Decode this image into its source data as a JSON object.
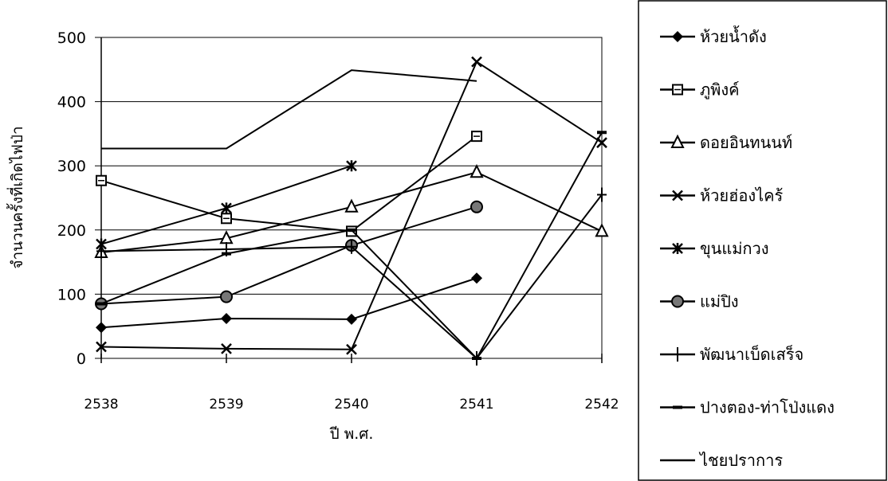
{
  "chart_data": {
    "type": "line",
    "title": "",
    "xlabel": "ปี พ.ศ.",
    "ylabel": "จำนวนครั้งที่เกิดไฟป่า",
    "categories": [
      "2538",
      "2539",
      "2540",
      "2541",
      "2542"
    ],
    "ylim": [
      0,
      500
    ],
    "yticks": [
      "0",
      "100",
      "200",
      "300",
      "400",
      "500"
    ],
    "grid": "horizontal",
    "legend_position": "right",
    "series": [
      {
        "name": "ห้วยน้ำดัง",
        "marker": "diamond",
        "values": [
          48,
          62,
          61,
          125,
          null
        ]
      },
      {
        "name": "ภูพิงค์",
        "marker": "square",
        "values": [
          277,
          218,
          198,
          346,
          null
        ]
      },
      {
        "name": "ดอยอินทนนท์",
        "marker": "triangle",
        "values": [
          165,
          187,
          236,
          290,
          198
        ]
      },
      {
        "name": "ห้วยฮ่องไคร้",
        "marker": "x",
        "values": [
          18,
          15,
          14,
          462,
          336
        ]
      },
      {
        "name": "ขุนแม่กวง",
        "marker": "star",
        "values": [
          178,
          234,
          300,
          null,
          null
        ]
      },
      {
        "name": "แม่ปิง",
        "marker": "circle",
        "values": [
          85,
          96,
          176,
          236,
          null
        ]
      },
      {
        "name": "พัฒนาเบ็ดเสร็จ",
        "marker": "plus",
        "values": [
          167,
          170,
          174,
          0,
          255
        ]
      },
      {
        "name": "ปางตอง-ท่าโป่งแดง",
        "marker": "dash",
        "values": [
          85,
          163,
          200,
          0,
          352
        ]
      },
      {
        "name": "ไชยปราการ",
        "marker": "none",
        "values": [
          327,
          327,
          449,
          432,
          null
        ]
      }
    ]
  }
}
